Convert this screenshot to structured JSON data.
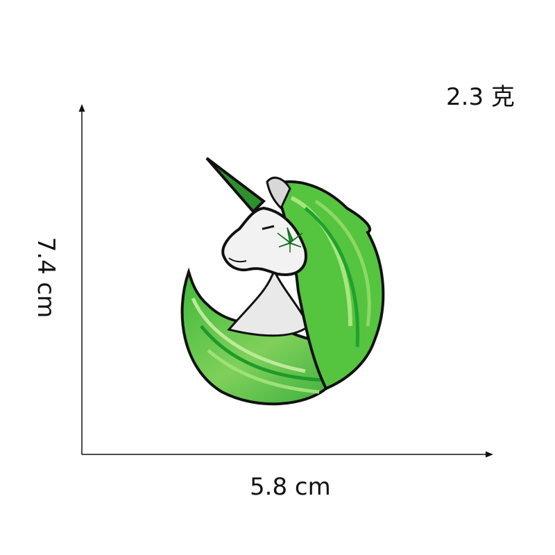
{
  "weight": "2.3 克",
  "dimensions": {
    "width": "5.8 cm",
    "height": "7.4 cm"
  },
  "image": {
    "subject": "unicorn-embroidered-patch",
    "colors": {
      "mane_light": "#8fd86a",
      "mane_mid": "#4cc23b",
      "mane_dark": "#1e9a2a",
      "outline": "#111111",
      "face": "#f2f2f2",
      "leaf": "#18a02a"
    }
  }
}
